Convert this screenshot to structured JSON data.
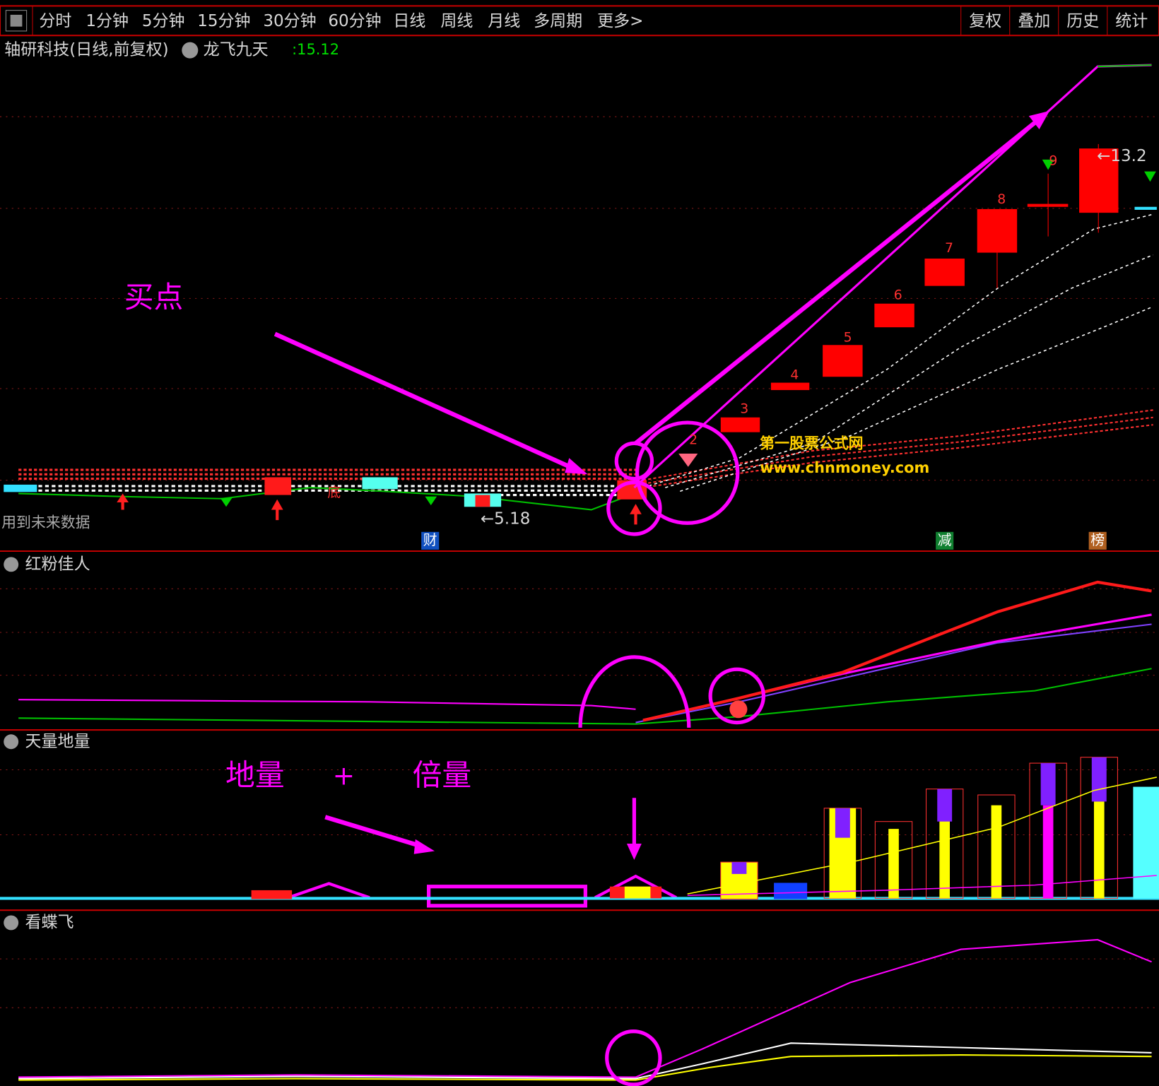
{
  "toolbar": {
    "tabs": [
      "分时",
      "1分钟",
      "5分钟",
      "15分钟",
      "30分钟",
      "60分钟",
      "日线",
      "周线",
      "月线",
      "多周期",
      "更多>"
    ],
    "active_tab": "日线",
    "right_buttons": [
      "复权",
      "叠加",
      "历史",
      "统计"
    ]
  },
  "main_panel": {
    "title": "轴研科技(日线,前复权)",
    "indicator": "龙飞九天",
    "indicator_value": ":15.12",
    "note": "用到未来数据",
    "annotation": "买点",
    "low_label": "←5.18",
    "high_label": "←13.2",
    "bottom_label": "底",
    "candle_numbers": [
      "2",
      "3",
      "4",
      "5",
      "6",
      "7",
      "8",
      "9"
    ],
    "event_markers": [
      "财",
      "减",
      "榜"
    ],
    "watermark": [
      "第一股票公式网",
      "www.chnmoney.com"
    ]
  },
  "panels": [
    {
      "title": "红粉佳人"
    },
    {
      "title": "天量地量",
      "annotations": [
        "地量",
        "+",
        "倍量"
      ]
    },
    {
      "title": "看蝶飞"
    }
  ]
}
